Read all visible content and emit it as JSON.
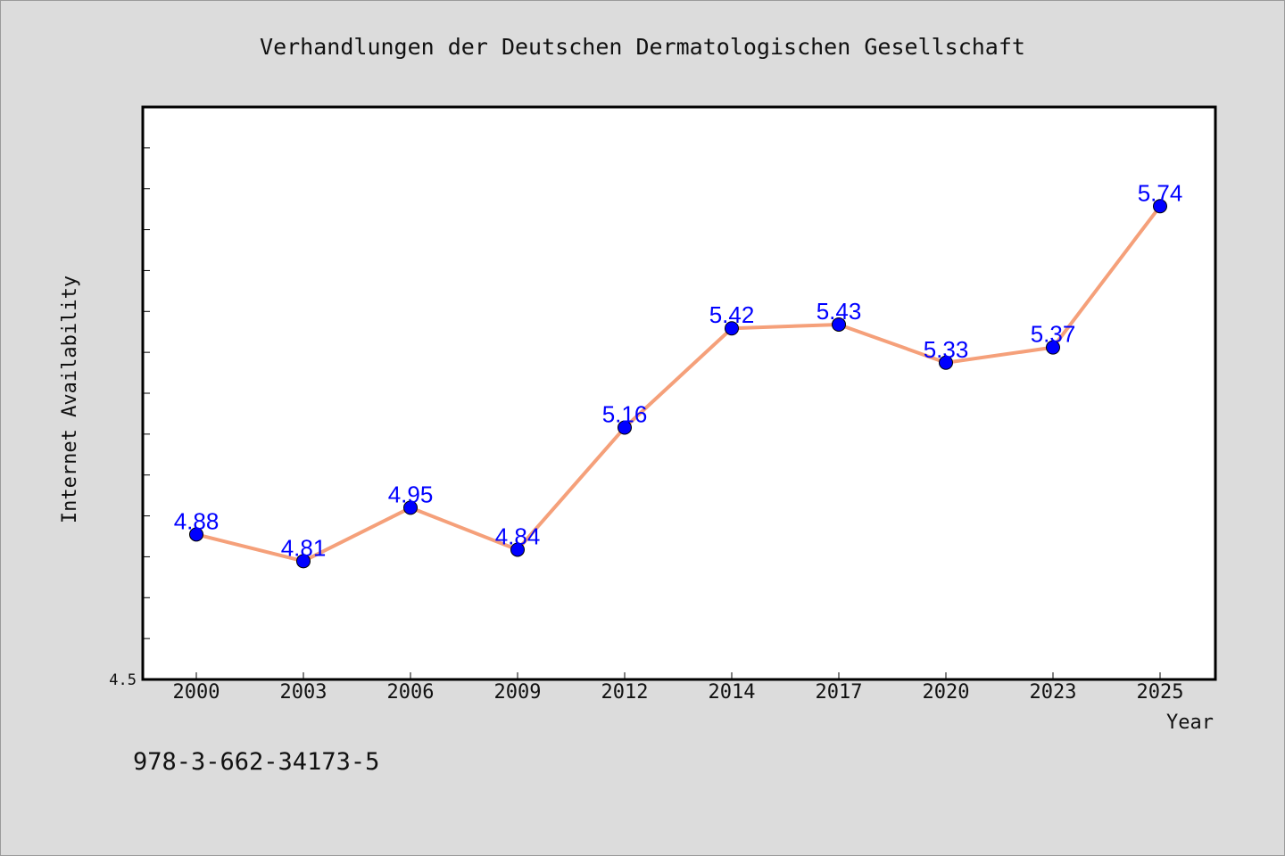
{
  "chart_data": {
    "type": "line",
    "title": "Verhandlungen der Deutschen Dermatologischen Gesellschaft",
    "xlabel": "Year",
    "ylabel": "Internet Availability",
    "categories": [
      "2000",
      "2003",
      "2006",
      "2009",
      "2012",
      "2014",
      "2017",
      "2020",
      "2023",
      "2025"
    ],
    "series": [
      {
        "values": [
          4.88,
          4.81,
          4.95,
          4.84,
          5.16,
          5.42,
          5.43,
          5.33,
          5.37,
          5.74
        ],
        "labels": [
          "4.88",
          "4.81",
          "4.95",
          "4.84",
          "5.16",
          "5.42",
          "5.43",
          "5.33",
          "5.37",
          "5.74"
        ]
      }
    ],
    "ylim": [
      4.5,
      6.0
    ],
    "ytick_label": "4.5",
    "grid": false,
    "legend": "none",
    "footnote": "978-3-662-34173-5",
    "colors": {
      "line": "#f5a07a",
      "marker": "#0000ff",
      "data_label": "#0000ff",
      "plot_background": "#ffffff",
      "page_background": "#dcdcdc",
      "text": "#111111"
    }
  }
}
